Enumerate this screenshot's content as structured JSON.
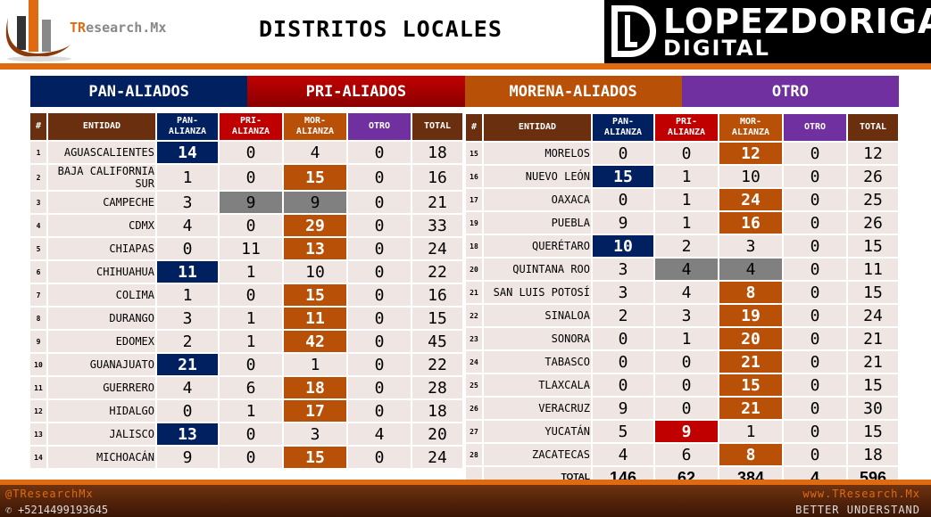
{
  "header": {
    "brand_prefix": "TR",
    "brand_rest": "esearch.Mx",
    "title": "DISTRITOS LOCALES",
    "partner_line1": "LOPEZDORIGA",
    "partner_line2": "DIGITAL"
  },
  "colors": {
    "pan": "#002060",
    "pri": "#c00000",
    "mor": "#b85008",
    "otro": "#7030a0",
    "tie": "#808080",
    "head": "#6a2f0e",
    "orange": "#e06a10"
  },
  "band": [
    "PAN-ALIADOS",
    "PRI-ALIADOS",
    "MORENA-ALIADOS",
    "OTRO"
  ],
  "columns": [
    "#",
    "ENTIDAD",
    "PAN-\nALIANZA",
    "PRI-\nALIANZA",
    "MOR-\nALIANZA",
    "OTRO",
    "TOTAL"
  ],
  "left_rows": [
    {
      "n": "1",
      "e": "AGUASCALIENTES",
      "v": [
        "14",
        "0",
        "4",
        "0",
        "18"
      ],
      "hl": "pan"
    },
    {
      "n": "2",
      "e": "BAJA CALIFORNIA SUR",
      "v": [
        "1",
        "0",
        "15",
        "0",
        "16"
      ],
      "hl": "mor"
    },
    {
      "n": "3",
      "e": "CAMPECHE",
      "v": [
        "3",
        "9",
        "9",
        "0",
        "21"
      ],
      "hl": "tie"
    },
    {
      "n": "4",
      "e": "CDMX",
      "v": [
        "4",
        "0",
        "29",
        "0",
        "33"
      ],
      "hl": "mor"
    },
    {
      "n": "5",
      "e": "CHIAPAS",
      "v": [
        "0",
        "11",
        "13",
        "0",
        "24"
      ],
      "hl": "mor"
    },
    {
      "n": "6",
      "e": "CHIHUAHUA",
      "v": [
        "11",
        "1",
        "10",
        "0",
        "22"
      ],
      "hl": "pan"
    },
    {
      "n": "7",
      "e": "COLIMA",
      "v": [
        "1",
        "0",
        "15",
        "0",
        "16"
      ],
      "hl": "mor"
    },
    {
      "n": "8",
      "e": "DURANGO",
      "v": [
        "3",
        "1",
        "11",
        "0",
        "15"
      ],
      "hl": "mor"
    },
    {
      "n": "9",
      "e": "EDOMEX",
      "v": [
        "2",
        "1",
        "42",
        "0",
        "45"
      ],
      "hl": "mor"
    },
    {
      "n": "10",
      "e": "GUANAJUATO",
      "v": [
        "21",
        "0",
        "1",
        "0",
        "22"
      ],
      "hl": "pan"
    },
    {
      "n": "11",
      "e": "GUERRERO",
      "v": [
        "4",
        "6",
        "18",
        "0",
        "28"
      ],
      "hl": "mor"
    },
    {
      "n": "12",
      "e": "HIDALGO",
      "v": [
        "0",
        "1",
        "17",
        "0",
        "18"
      ],
      "hl": "mor"
    },
    {
      "n": "13",
      "e": "JALISCO",
      "v": [
        "13",
        "0",
        "3",
        "4",
        "20"
      ],
      "hl": "pan"
    },
    {
      "n": "14",
      "e": "MICHOACÁN",
      "v": [
        "9",
        "0",
        "15",
        "0",
        "24"
      ],
      "hl": "mor"
    }
  ],
  "right_rows": [
    {
      "n": "15",
      "e": "MORELOS",
      "v": [
        "0",
        "0",
        "12",
        "0",
        "12"
      ],
      "hl": "mor"
    },
    {
      "n": "16",
      "e": "NUEVO LEÓN",
      "v": [
        "15",
        "1",
        "10",
        "0",
        "26"
      ],
      "hl": "pan"
    },
    {
      "n": "17",
      "e": "OAXACA",
      "v": [
        "0",
        "1",
        "24",
        "0",
        "25"
      ],
      "hl": "mor"
    },
    {
      "n": "19",
      "e": "PUEBLA",
      "v": [
        "9",
        "1",
        "16",
        "0",
        "26"
      ],
      "hl": "mor"
    },
    {
      "n": "18",
      "e": "QUERÉTARO",
      "v": [
        "10",
        "2",
        "3",
        "0",
        "15"
      ],
      "hl": "pan"
    },
    {
      "n": "20",
      "e": "QUINTANA ROO",
      "v": [
        "3",
        "4",
        "4",
        "0",
        "11"
      ],
      "hl": "tie"
    },
    {
      "n": "21",
      "e": "SAN LUIS POTOSÍ",
      "v": [
        "3",
        "4",
        "8",
        "0",
        "15"
      ],
      "hl": "mor"
    },
    {
      "n": "22",
      "e": "SINALOA",
      "v": [
        "2",
        "3",
        "19",
        "0",
        "24"
      ],
      "hl": "mor"
    },
    {
      "n": "23",
      "e": "SONORA",
      "v": [
        "0",
        "1",
        "20",
        "0",
        "21"
      ],
      "hl": "mor"
    },
    {
      "n": "24",
      "e": "TABASCO",
      "v": [
        "0",
        "0",
        "21",
        "0",
        "21"
      ],
      "hl": "mor"
    },
    {
      "n": "25",
      "e": "TLAXCALA",
      "v": [
        "0",
        "0",
        "15",
        "0",
        "15"
      ],
      "hl": "mor"
    },
    {
      "n": "26",
      "e": "VERACRUZ",
      "v": [
        "9",
        "0",
        "21",
        "0",
        "30"
      ],
      "hl": "mor"
    },
    {
      "n": "27",
      "e": "YUCATÁN",
      "v": [
        "5",
        "9",
        "1",
        "0",
        "15"
      ],
      "hl": "pri"
    },
    {
      "n": "28",
      "e": "ZACATECAS",
      "v": [
        "4",
        "6",
        "8",
        "0",
        "18"
      ],
      "hl": "mor"
    }
  ],
  "total": {
    "label": "TOTAL",
    "v": [
      "146",
      "62",
      "384",
      "4",
      "596"
    ]
  },
  "footer": {
    "handle": "@TResearchMx",
    "phone": "+5214499193645",
    "site": "www.TResearch.Mx",
    "slogan": "BETTER UNDERSTAND"
  }
}
